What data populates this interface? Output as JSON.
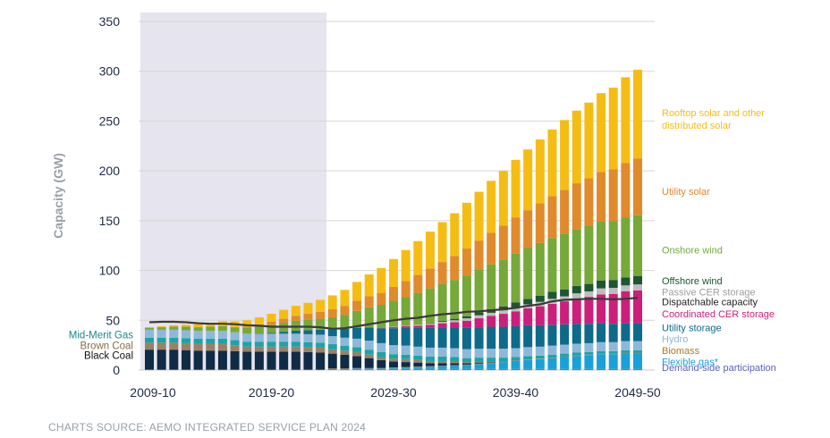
{
  "source_note": "CHARTS SOURCE: AEMO INTEGRATED SERVICE PLAN 2024",
  "chart_data": {
    "type": "bar",
    "stacked": true,
    "ylabel": "Capacity (GW)",
    "xlabel": "",
    "ylim": [
      0,
      350
    ],
    "yticks": [
      0,
      50,
      100,
      150,
      200,
      250,
      300,
      350
    ],
    "xtick_labels": [
      "2009-10",
      "2019-20",
      "2029-30",
      "2039-40",
      "2049-50"
    ],
    "xtick_indices": [
      0,
      10,
      20,
      30,
      40
    ],
    "grid": true,
    "historical_shading": {
      "from_index": 0,
      "to_index": 14,
      "color": "#e6e4ee"
    },
    "categories": [
      "2009-10",
      "2010-11",
      "2011-12",
      "2012-13",
      "2013-14",
      "2014-15",
      "2015-16",
      "2016-17",
      "2017-18",
      "2018-19",
      "2019-20",
      "2020-21",
      "2021-22",
      "2022-23",
      "2023-24",
      "2024-25",
      "2025-26",
      "2026-27",
      "2027-28",
      "2028-29",
      "2029-30",
      "2030-31",
      "2031-32",
      "2032-33",
      "2033-34",
      "2034-35",
      "2035-36",
      "2036-37",
      "2037-38",
      "2038-39",
      "2039-40",
      "2040-41",
      "2041-42",
      "2042-43",
      "2043-44",
      "2044-45",
      "2045-46",
      "2046-47",
      "2047-48",
      "2048-49",
      "2049-50"
    ],
    "series": [
      {
        "name": "Demand-side participation",
        "color": "#7d72b5",
        "values": [
          0,
          0,
          0,
          0,
          0,
          0,
          0,
          0,
          0,
          0,
          0,
          0,
          0,
          0,
          0,
          0.5,
          0.5,
          0.5,
          0.5,
          0.5,
          1,
          1,
          1,
          1,
          1,
          1,
          1,
          1,
          1,
          1,
          1,
          1,
          1,
          1,
          1,
          1,
          1,
          1,
          1,
          1,
          1
        ]
      },
      {
        "name": "Flexible gas*",
        "color": "#1aa0d8",
        "values": [
          0,
          0,
          0,
          0,
          0,
          0,
          0,
          0,
          0,
          0,
          0,
          0,
          0,
          0,
          0,
          0.5,
          0.5,
          1,
          1,
          1,
          1,
          1.5,
          2,
          2.5,
          3,
          3.5,
          4,
          5,
          6,
          7,
          8,
          9,
          10,
          11,
          12,
          13,
          14,
          15,
          15,
          16,
          16
        ]
      },
      {
        "name": "Biomass",
        "color": "#a67c52",
        "values": [
          0.5,
          0.5,
          0.5,
          0.5,
          0.5,
          0.5,
          0.5,
          0.5,
          0.5,
          0.5,
          0.5,
          0.5,
          0.5,
          0.5,
          0.5,
          0.5,
          0.5,
          0.5,
          0.5,
          0.5,
          0.5,
          0.5,
          0.5,
          0.5,
          0.5,
          0.5,
          0.5,
          0.5,
          0.5,
          0.5,
          0.5,
          0.5,
          0.5,
          0.5,
          0.5,
          0.5,
          0.5,
          0.5,
          0.5,
          0.5,
          0.5
        ]
      },
      {
        "name": "Black Coal",
        "color": "#0f2b46",
        "values": [
          20,
          20,
          20,
          19.5,
          19,
          19,
          19,
          18.5,
          18,
          18,
          18,
          18,
          18,
          17.5,
          17,
          15,
          14,
          12,
          10,
          8,
          6,
          5,
          4,
          3,
          2.5,
          2,
          1.5,
          1,
          0.5,
          0,
          0,
          0,
          0,
          0,
          0,
          0,
          0,
          0,
          0,
          0,
          0
        ]
      },
      {
        "name": "Brown Coal",
        "color": "#9c8063",
        "values": [
          7,
          7,
          7,
          7,
          7,
          7,
          7,
          6,
          5,
          5,
          5,
          5,
          5,
          5,
          5,
          4.5,
          4,
          4,
          3.5,
          3,
          3,
          3,
          2.5,
          2,
          2,
          1.5,
          1,
          1,
          0.5,
          0,
          0,
          0,
          0,
          0,
          0,
          0,
          0,
          0,
          0,
          0,
          0
        ]
      },
      {
        "name": "Mid-Merit Gas",
        "color": "#1ba4a6",
        "values": [
          5,
          5,
          5,
          5,
          5,
          5,
          5,
          5,
          5,
          5,
          5,
          5,
          5,
          5,
          5,
          5,
          5,
          5,
          5,
          5,
          4.5,
          4.5,
          4.5,
          4.5,
          4.5,
          4.5,
          4,
          4,
          4,
          4,
          3.5,
          3.5,
          3,
          3,
          3,
          3,
          2.5,
          2.5,
          2.5,
          2.5,
          2.5
        ]
      },
      {
        "name": "Hydro",
        "color": "#8fb8d8",
        "values": [
          8,
          8,
          8,
          8,
          8,
          8,
          8,
          8,
          8,
          8,
          8,
          8,
          8,
          8,
          8,
          8,
          8,
          8.5,
          9,
          9,
          9,
          9,
          9,
          9,
          9,
          9,
          9,
          9,
          9,
          9,
          9,
          9,
          9,
          9,
          9,
          9,
          9,
          9,
          9,
          9,
          9
        ]
      },
      {
        "name": "Utility storage",
        "color": "#0e6a8a",
        "values": [
          0,
          0,
          0,
          0,
          0,
          0,
          0,
          0,
          0,
          0.5,
          1,
          2,
          3,
          4,
          5,
          7,
          9,
          11,
          13,
          15,
          17,
          18,
          19,
          20,
          20.5,
          21,
          21.5,
          21.5,
          22,
          22,
          22,
          22,
          21.5,
          21,
          20.5,
          20,
          19.5,
          19,
          18.5,
          18,
          18
        ]
      },
      {
        "name": "Coordinated CER storage",
        "color": "#cc1f7a",
        "values": [
          0,
          0,
          0,
          0,
          0,
          0,
          0,
          0,
          0,
          0,
          0,
          0,
          0,
          0,
          0,
          0,
          0,
          0,
          0.5,
          0.5,
          1,
          1.5,
          2,
          3,
          4,
          5,
          7,
          9,
          11,
          13,
          15,
          17,
          19,
          21,
          23,
          25,
          27,
          29,
          30,
          32,
          33
        ]
      },
      {
        "name": "Dispatchable capacity",
        "color": "#555555",
        "values": [
          0,
          0,
          0,
          0,
          0,
          0,
          0,
          0,
          0,
          0,
          0,
          0,
          0,
          0,
          0,
          0,
          0,
          0,
          0,
          0,
          0,
          0,
          0,
          0,
          0,
          0,
          0,
          0,
          0,
          0,
          0,
          0,
          0,
          0,
          0,
          0,
          0,
          0,
          0,
          0,
          0
        ],
        "line_values": [
          48,
          48.5,
          48.5,
          48,
          47,
          46.5,
          46.5,
          46,
          45,
          44.5,
          43.5,
          43.5,
          43.5,
          43.5,
          43,
          41.5,
          42,
          44,
          46,
          48,
          50,
          51.5,
          52.5,
          54.5,
          56,
          57,
          58.5,
          59,
          60,
          61,
          62.5,
          64.5,
          66,
          69,
          70.5,
          71,
          71.5,
          71.5,
          71,
          71.5,
          72.5
        ]
      },
      {
        "name": "Passive CER storage",
        "color": "#bdbdbd",
        "values": [
          0,
          0,
          0,
          0,
          0,
          0,
          0,
          0,
          0,
          0,
          0,
          0,
          0,
          0,
          0,
          0,
          0,
          0,
          0,
          0,
          0.5,
          0.5,
          1,
          1,
          1.5,
          2,
          2.5,
          3,
          3,
          3.5,
          4,
          4,
          4.5,
          5,
          5,
          5.5,
          5.5,
          6,
          6,
          6,
          6
        ]
      },
      {
        "name": "Offshore wind",
        "color": "#1e5631",
        "values": [
          0,
          0,
          0,
          0,
          0,
          0,
          0,
          0,
          0,
          0,
          0,
          0,
          0,
          0,
          0,
          0,
          0,
          0,
          0,
          0,
          0,
          0,
          0,
          0.5,
          1,
          1.5,
          2,
          3,
          3.5,
          4,
          5,
          5.5,
          6,
          7,
          7,
          7.5,
          7.5,
          8,
          8,
          8,
          8.5
        ]
      },
      {
        "name": "Onshore wind",
        "color": "#76a83a",
        "values": [
          2,
          2.5,
          3,
          3.5,
          3.5,
          4,
          4.5,
          5,
          6,
          7,
          8,
          9,
          10,
          10.5,
          11,
          12,
          14,
          17,
          20,
          23,
          26,
          29,
          32,
          35,
          37,
          39,
          41,
          43,
          45,
          47,
          49,
          51,
          53,
          54,
          56,
          57,
          58,
          59,
          59,
          60,
          61
        ]
      },
      {
        "name": "Utility solar",
        "color": "#e08a2c",
        "values": [
          0,
          0,
          0,
          0,
          0,
          0,
          0,
          0,
          1,
          2,
          3,
          4,
          5,
          6,
          7,
          8,
          9,
          10,
          11,
          12,
          14,
          16,
          18,
          20,
          22,
          24,
          27,
          29,
          32,
          34,
          36,
          38,
          40,
          42,
          44,
          46,
          48,
          50,
          52,
          55,
          57
        ]
      },
      {
        "name": "Rooftop solar and other distributed solar",
        "color": "#f5bd14",
        "values": [
          0.5,
          1,
          1.5,
          2,
          3,
          4,
          5,
          6,
          6.5,
          7,
          8,
          9,
          10,
          11,
          12,
          14,
          16,
          19,
          22,
          25,
          28,
          31,
          34,
          37,
          40,
          43,
          46,
          49,
          52,
          55,
          58,
          61,
          64,
          67,
          70,
          73,
          76,
          79,
          82,
          86,
          89
        ]
      }
    ],
    "legend_right": [
      {
        "label": "Rooftop solar and other distributed solar",
        "color": "#f5bd14",
        "lines": [
          "Rooftop solar and other",
          "distributed solar"
        ],
        "anchor": 255
      },
      {
        "label": "Utility solar",
        "color": "#e08a2c",
        "lines": [
          "Utility solar"
        ],
        "anchor": 176
      },
      {
        "label": "Onshore wind",
        "color": "#76a83a",
        "lines": [
          "Onshore wind"
        ],
        "anchor": 117
      },
      {
        "label": "Offshore wind",
        "color": "#1e5631",
        "lines": [
          "Offshore wind"
        ],
        "anchor": 86
      },
      {
        "label": "Passive CER storage",
        "color": "#9e9e9e",
        "lines": [
          "Passive CER storage"
        ],
        "anchor": 75
      },
      {
        "label": "Dispatchable capacity",
        "color": "#222222",
        "lines": [
          "Dispatchable capacity"
        ],
        "anchor": 65
      },
      {
        "label": "Coordinated CER storage",
        "color": "#cc1f7a",
        "lines": [
          "Coordinated CER storage"
        ],
        "anchor": 53
      },
      {
        "label": "Utility storage",
        "color": "#0e6a8a",
        "lines": [
          "Utility storage"
        ],
        "anchor": 39
      },
      {
        "label": "Hydro",
        "color": "#8fb8d8",
        "lines": [
          "Hydro"
        ],
        "anchor": 28
      },
      {
        "label": "Biomass",
        "color": "#b07a1c",
        "lines": [
          "Biomass"
        ],
        "anchor": 16
      },
      {
        "label": "Flexible gas*",
        "color": "#1aa0d8",
        "lines": [
          "Flexible gas*"
        ],
        "anchor": 5
      },
      {
        "label": "Demand-side participation",
        "color": "#5a63b5",
        "lines": [
          "Demand-side participation"
        ],
        "anchor": -1
      }
    ],
    "legend_left": [
      {
        "label": "Mid-Merit Gas",
        "color": "#1b8a8c",
        "anchor": 32
      },
      {
        "label": "Brown Coal",
        "color": "#8a6a4a",
        "anchor": 21
      },
      {
        "label": "Black Coal",
        "color": "#111111",
        "anchor": 11
      }
    ]
  }
}
